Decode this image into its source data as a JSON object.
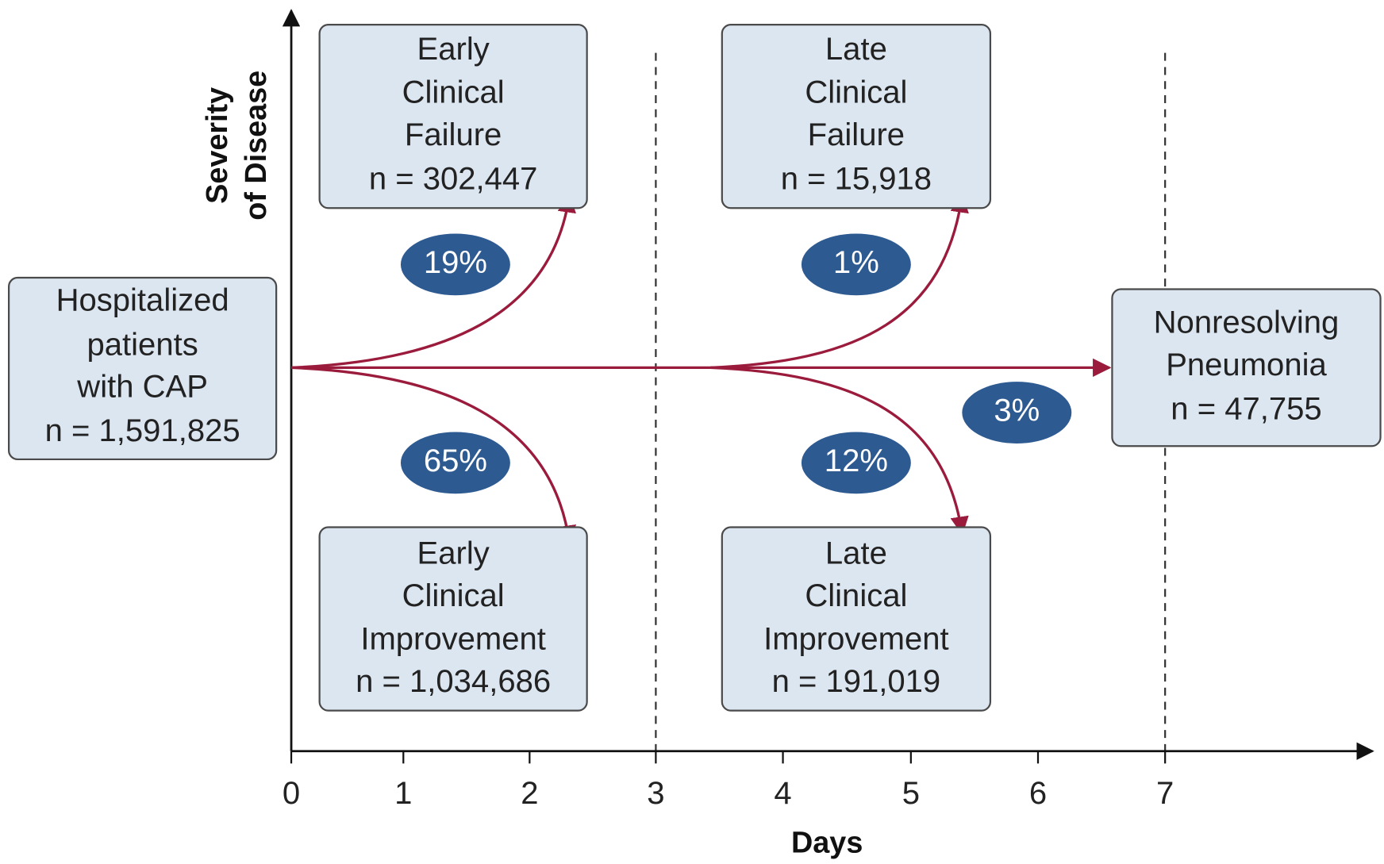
{
  "axis": {
    "y_label": [
      "Severity",
      "of Disease"
    ],
    "x_label": "Days",
    "ticks": [
      "0",
      "1",
      "2",
      "3",
      "4",
      "5",
      "6",
      "7"
    ]
  },
  "nodes": [
    {
      "lines": [
        "Hospitalized",
        "patients",
        "with CAP",
        "n = 1,591,825"
      ]
    },
    {
      "lines": [
        "Early",
        "Clinical",
        "Failure",
        "n = 302,447"
      ]
    },
    {
      "lines": [
        "Late",
        "Clinical",
        "Failure",
        "n = 15,918"
      ]
    },
    {
      "lines": [
        "Early",
        "Clinical",
        "Improvement",
        "n = 1,034,686"
      ]
    },
    {
      "lines": [
        "Late",
        "Clinical",
        "Improvement",
        "n = 191,019"
      ]
    },
    {
      "lines": [
        "Nonresolving",
        "Pneumonia",
        "n = 47,755"
      ]
    }
  ],
  "percentages": [
    "19%",
    "1%",
    "65%",
    "12%",
    "3%"
  ]
}
